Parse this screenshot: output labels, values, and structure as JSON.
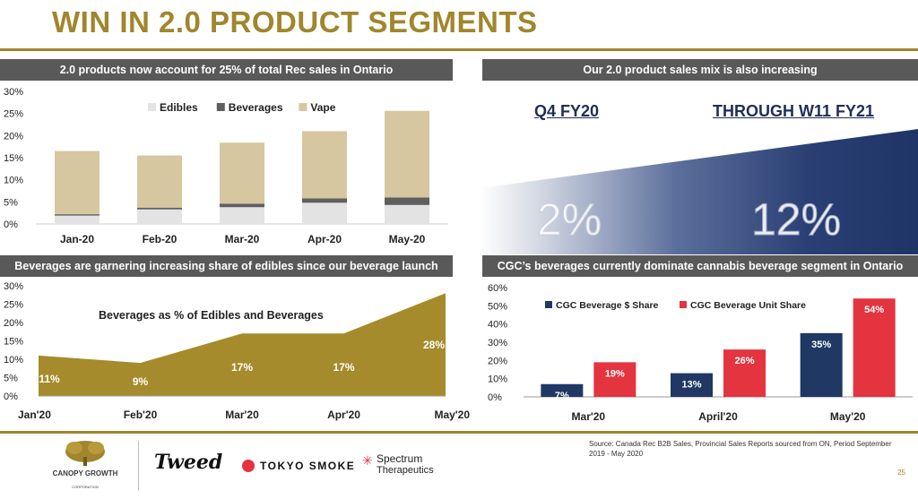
{
  "page": {
    "title": "WIN IN 2.0 PRODUCT SEGMENTS",
    "page_number": "25",
    "source": "Source: Canada Rec B2B Sales, Provincial Sales Reports sourced from ON, Period September 2019 - May 2020"
  },
  "panels": {
    "top_left": "2.0 products now account for 25% of total Rec sales in Ontario",
    "top_right": "Our 2.0 product sales mix is also increasing",
    "bottom_left": "Beverages are garnering increasing share of edibles since our beverage launch",
    "bottom_right": "CGC’s beverages currently dominate cannabis beverage segment in Ontario"
  },
  "mix": {
    "left_label": "Q4 FY20",
    "right_label": "THROUGH W11 FY21",
    "left_value": "2%",
    "right_value": "12%"
  },
  "logos": {
    "canopy": "CANOPY GROWTH",
    "canopy_sub": "CORPORATION",
    "tweed": "Tweed",
    "tokyo": "TOKYO SMOKE",
    "spectrum_1": "Spectrum",
    "spectrum_2": "Therapeutics"
  },
  "colors": {
    "gold": "#a0862c",
    "edibles": "#e3e3e3",
    "beverages": "#5f5f5f",
    "vape": "#d6c7a1",
    "area": "#a58b2c",
    "navy": "#1f3864",
    "red": "#e3343f",
    "header": "#595959"
  },
  "chart_data": [
    {
      "type": "bar",
      "stacked": true,
      "categories": [
        "Jan-20",
        "Feb-20",
        "Mar-20",
        "Apr-20",
        "May-20"
      ],
      "series": [
        {
          "name": "Edibles",
          "values": [
            1.9,
            3.3,
            3.8,
            4.8,
            4.3
          ]
        },
        {
          "name": "Beverages",
          "values": [
            0.3,
            0.4,
            0.8,
            1.0,
            1.7
          ]
        },
        {
          "name": "Vape",
          "values": [
            14.3,
            11.8,
            13.8,
            15.2,
            19.6
          ]
        }
      ],
      "yticks": [
        "0%",
        "5%",
        "10%",
        "15%",
        "20%",
        "25%",
        "30%"
      ],
      "ylim": [
        0,
        30
      ],
      "legend": "top-center"
    },
    {
      "type": "area",
      "categories": [
        "Jan'20",
        "Feb'20",
        "Mar'20",
        "Apr'20",
        "May'20"
      ],
      "values": [
        11,
        9,
        17,
        17,
        28
      ],
      "labels": [
        "11%",
        "9%",
        "17%",
        "17%",
        "28%"
      ],
      "title": "Beverages as % of Edibles and Beverages",
      "yticks": [
        "0%",
        "5%",
        "10%",
        "15%",
        "20%",
        "25%",
        "30%"
      ],
      "ylim": [
        0,
        30
      ]
    },
    {
      "type": "bar",
      "categories": [
        "Mar'20",
        "April'20",
        "May'20"
      ],
      "series": [
        {
          "name": "CGC Beverage $ Share",
          "values": [
            7,
            13,
            35
          ],
          "labels": [
            "7%",
            "13%",
            "35%"
          ]
        },
        {
          "name": "CGC Beverage Unit Share",
          "values": [
            19,
            26,
            54
          ],
          "labels": [
            "19%",
            "26%",
            "54%"
          ]
        }
      ],
      "yticks": [
        "0%",
        "10%",
        "20%",
        "30%",
        "40%",
        "50%",
        "60%"
      ],
      "ylim": [
        0,
        60
      ],
      "legend": "top-left"
    }
  ]
}
